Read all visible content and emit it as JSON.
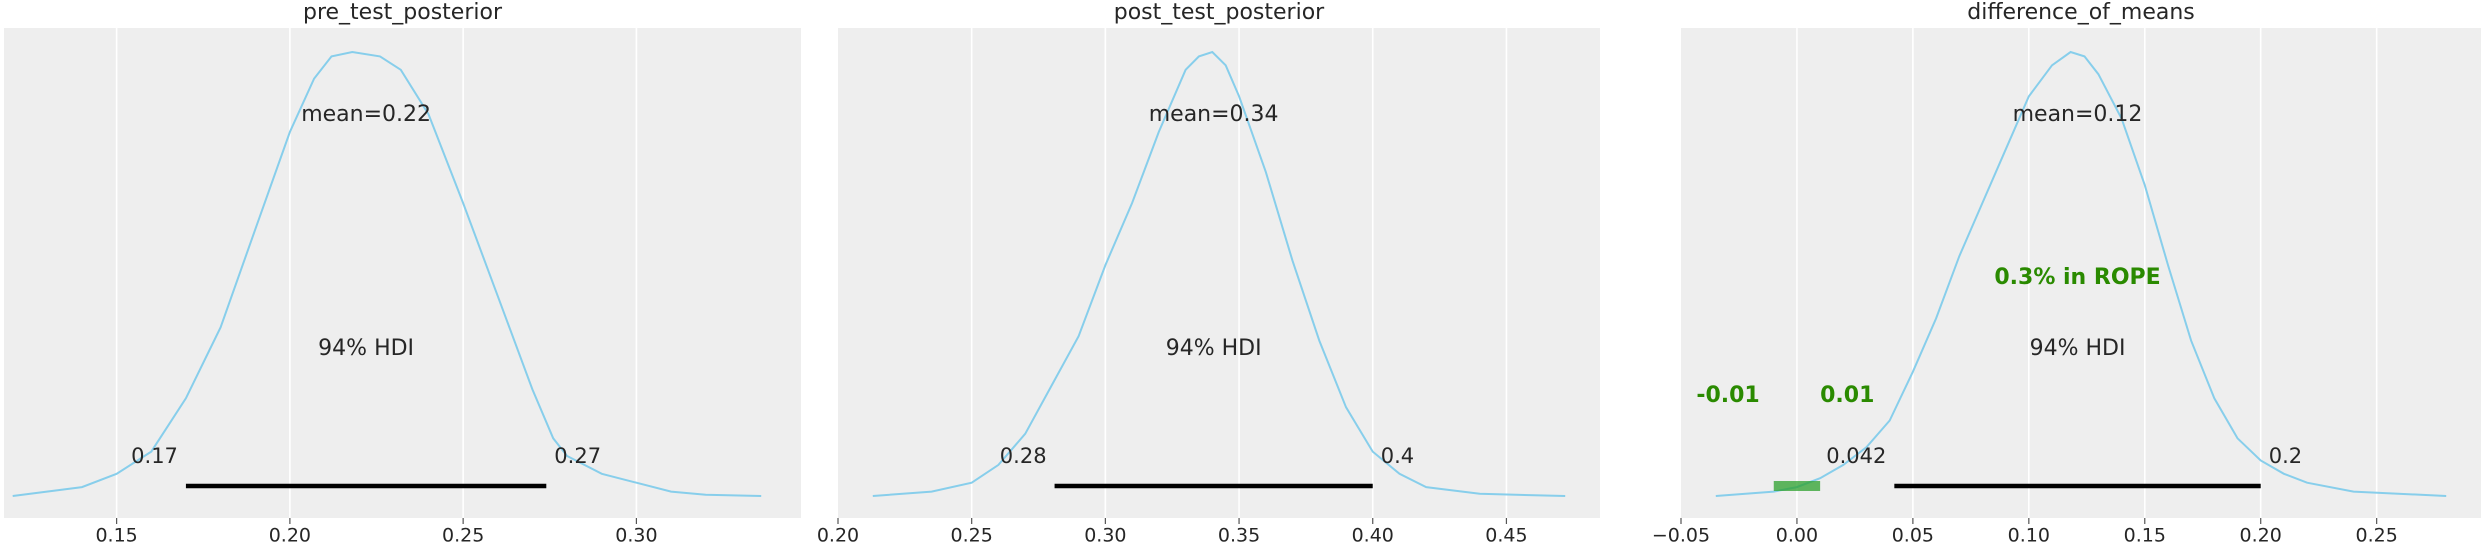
{
  "chart_data": [
    {
      "type": "area",
      "title": "pre_test_posterior",
      "xlabel": "",
      "ylabel": "",
      "xlim": [
        0.1175,
        0.3475
      ],
      "ylim": [
        0,
        1.05
      ],
      "xticks": [
        0.15,
        0.2,
        0.25,
        0.3
      ],
      "xtick_labels": [
        "0.15",
        "0.20",
        "0.25",
        "0.30"
      ],
      "grid": true,
      "line_color": "#87ceeb",
      "density": {
        "x": [
          0.12,
          0.14,
          0.15,
          0.16,
          0.17,
          0.18,
          0.19,
          0.2,
          0.207,
          0.212,
          0.218,
          0.226,
          0.232,
          0.24,
          0.25,
          0.26,
          0.27,
          0.276,
          0.28,
          0.29,
          0.3,
          0.31,
          0.32,
          0.336
        ],
        "y": [
          0.0,
          0.02,
          0.05,
          0.1,
          0.22,
          0.38,
          0.6,
          0.82,
          0.94,
          0.99,
          1.0,
          0.99,
          0.96,
          0.86,
          0.66,
          0.45,
          0.24,
          0.13,
          0.09,
          0.05,
          0.03,
          0.01,
          0.003,
          0.0
        ]
      },
      "mean_label": "mean=0.22",
      "hdi_label": "94% HDI",
      "hdi": [
        0.17,
        0.274
      ],
      "hdi_tick_labels": [
        "0.17",
        "0.27"
      ]
    },
    {
      "type": "area",
      "title": "post_test_posterior",
      "xlabel": "",
      "ylabel": "",
      "xlim": [
        0.2,
        0.485
      ],
      "ylim": [
        0,
        1.05
      ],
      "xticks": [
        0.2,
        0.25,
        0.3,
        0.35,
        0.4,
        0.45
      ],
      "xtick_labels": [
        "0.20",
        "0.25",
        "0.30",
        "0.35",
        "0.40",
        "0.45"
      ],
      "grid": true,
      "line_color": "#87ceeb",
      "density": {
        "x": [
          0.213,
          0.235,
          0.25,
          0.26,
          0.27,
          0.28,
          0.29,
          0.3,
          0.31,
          0.32,
          0.33,
          0.335,
          0.34,
          0.345,
          0.35,
          0.36,
          0.37,
          0.38,
          0.39,
          0.4,
          0.41,
          0.42,
          0.44,
          0.472
        ],
        "y": [
          0.0,
          0.01,
          0.03,
          0.07,
          0.14,
          0.25,
          0.36,
          0.52,
          0.66,
          0.82,
          0.96,
          0.99,
          1.0,
          0.97,
          0.9,
          0.73,
          0.53,
          0.35,
          0.2,
          0.1,
          0.05,
          0.02,
          0.005,
          0.0
        ]
      },
      "mean_label": "mean=0.34",
      "hdi_label": "94% HDI",
      "hdi": [
        0.281,
        0.4
      ],
      "hdi_tick_labels": [
        "0.28",
        "0.4"
      ]
    },
    {
      "type": "area",
      "title": "difference_of_means",
      "xlabel": "",
      "ylabel": "",
      "xlim": [
        -0.05,
        0.295
      ],
      "ylim": [
        0,
        1.05
      ],
      "xticks": [
        -0.05,
        0.0,
        0.05,
        0.1,
        0.15,
        0.2,
        0.25
      ],
      "xtick_labels": [
        "−0.05",
        "0.00",
        "0.05",
        "0.10",
        "0.15",
        "0.20",
        "0.25"
      ],
      "grid": true,
      "line_color": "#87ceeb",
      "density": {
        "x": [
          -0.035,
          -0.01,
          0.0,
          0.01,
          0.02,
          0.03,
          0.04,
          0.05,
          0.06,
          0.07,
          0.08,
          0.09,
          0.1,
          0.11,
          0.118,
          0.124,
          0.13,
          0.14,
          0.15,
          0.16,
          0.17,
          0.18,
          0.19,
          0.2,
          0.21,
          0.22,
          0.24,
          0.28
        ],
        "y": [
          0.0,
          0.01,
          0.02,
          0.04,
          0.07,
          0.11,
          0.17,
          0.28,
          0.4,
          0.54,
          0.66,
          0.78,
          0.9,
          0.97,
          1.0,
          0.99,
          0.95,
          0.85,
          0.7,
          0.52,
          0.35,
          0.22,
          0.13,
          0.08,
          0.05,
          0.03,
          0.01,
          0.0
        ]
      },
      "mean_label": "mean=0.12",
      "hdi_label": "94% HDI",
      "hdi": [
        0.042,
        0.2
      ],
      "hdi_tick_labels": [
        "0.042",
        "0.2"
      ],
      "rope": [
        -0.01,
        0.01
      ],
      "rope_label": "0.3% in ROPE",
      "rope_tick_labels": [
        "-0.01",
        "0.01"
      ],
      "rope_color": "#2ca02c",
      "rope_text_color": "#2a8a00"
    }
  ]
}
